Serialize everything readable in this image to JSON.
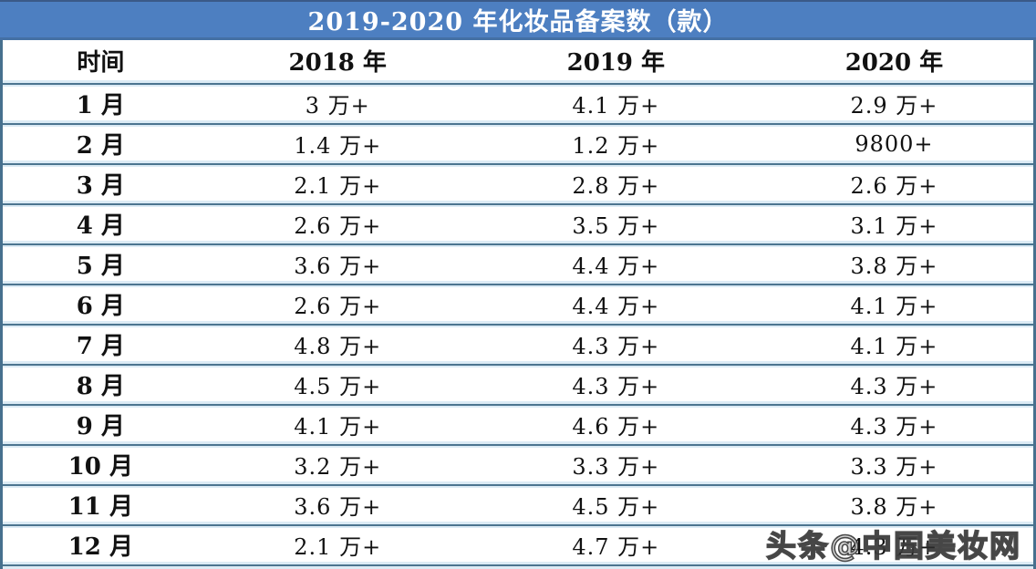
{
  "page": {
    "title_bar": "2019-2020 年化妆品备案数（款）",
    "watermark": "头条@中国美妆网"
  },
  "colors": {
    "title_bar_bg": "#4d7fc1",
    "title_text": "#ffffff",
    "row_bg": "#ffffff",
    "separator_line": "#4c7590",
    "light_tint": "#dcebf5",
    "outer_border": "#47708e",
    "cell_text": "#111111"
  },
  "chart_data": {
    "type": "table",
    "title": "2019-2020 年化妆品备案数（款）",
    "columns": [
      "时间",
      "2018 年",
      "2019 年",
      "2020 年"
    ],
    "rows": [
      [
        "1 月",
        "3 万+",
        "4.1 万+",
        "2.9 万+"
      ],
      [
        "2 月",
        "1.4 万+",
        "1.2 万+",
        "9800+"
      ],
      [
        "3 月",
        "2.1 万+",
        "2.8 万+",
        "2.6 万+"
      ],
      [
        "4 月",
        "2.6 万+",
        "3.5 万+",
        "3.1 万+"
      ],
      [
        "5 月",
        "3.6 万+",
        "4.4 万+",
        "3.8 万+"
      ],
      [
        "6 月",
        "2.6 万+",
        "4.4 万+",
        "4.1 万+"
      ],
      [
        "7 月",
        "4.8 万+",
        "4.3 万+",
        "4.1 万+"
      ],
      [
        "8 月",
        "4.5 万+",
        "4.3 万+",
        "4.3 万+"
      ],
      [
        "9 月",
        "4.1 万+",
        "4.6 万+",
        "4.3 万+"
      ],
      [
        "10 月",
        "3.2 万+",
        "3.3 万+",
        "3.3 万+"
      ],
      [
        "11 月",
        "3.6 万+",
        "4.5 万+",
        "3.8 万+"
      ],
      [
        "12 月",
        "2.1 万+",
        "4.7 万+",
        "4.3 万+"
      ]
    ],
    "notes": {
      "last_row_2020_value_partially_obscured_by_watermark": true
    },
    "watermark": "头条@中国美妆网",
    "layout": {
      "column_widths_pct": [
        19,
        27,
        27,
        27
      ],
      "grid": "horizontal separators only, no vertical column lines"
    }
  }
}
